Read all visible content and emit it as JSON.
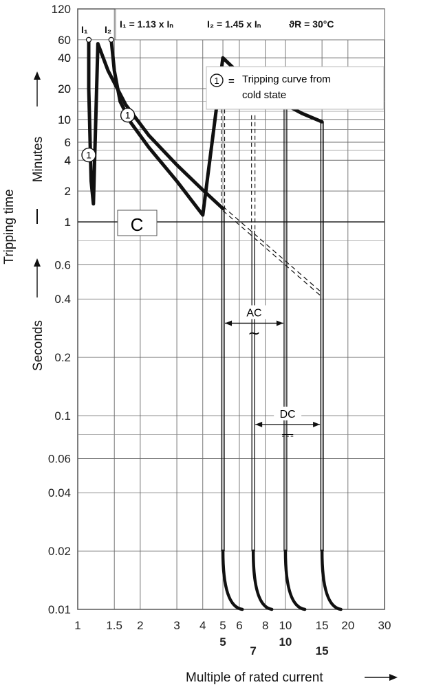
{
  "chart_data": {
    "type": "line",
    "curve_type_label": "C",
    "header": {
      "i1_formula": "I₁ = 1.13 x Iₙ",
      "i2_formula": "I₂ = 1.45 x Iₙ",
      "temp": "ϑR = 30°C",
      "i1_marker": "I₁",
      "i2_marker": "I₂"
    },
    "legend": {
      "symbol": "1",
      "eq": "=",
      "line1": "Tripping curve from",
      "line2": "cold state"
    },
    "xlabel": "Multiple of rated current",
    "ylabel_main": "Tripping time",
    "ylabel_minutes": "Minutes",
    "ylabel_seconds": "Seconds",
    "x_scale": "log",
    "xlim": [
      1,
      30
    ],
    "x_ticks": [
      {
        "v": 1,
        "label": "1"
      },
      {
        "v": 1.5,
        "label": "1.5"
      },
      {
        "v": 2,
        "label": "2"
      },
      {
        "v": 3,
        "label": "3"
      },
      {
        "v": 4,
        "label": "4"
      },
      {
        "v": 5,
        "label": "5"
      },
      {
        "v": 6,
        "label": "6"
      },
      {
        "v": 8,
        "label": "8"
      },
      {
        "v": 10,
        "label": "10"
      },
      {
        "v": 15,
        "label": "15"
      },
      {
        "v": 20,
        "label": "20"
      },
      {
        "v": 30,
        "label": "30"
      }
    ],
    "x_bold_ticks": [
      {
        "v": 5,
        "label": "5",
        "row": 0
      },
      {
        "v": 7,
        "label": "7",
        "row": 1
      },
      {
        "v": 10,
        "label": "10",
        "row": 0
      },
      {
        "v": 15,
        "label": "15",
        "row": 1
      }
    ],
    "y_scale": "log",
    "y_unit": "seconds",
    "ylim_seconds": [
      0.01,
      7200
    ],
    "y_ticks_seconds": [
      {
        "v": 0.01,
        "label": "0.01"
      },
      {
        "v": 0.02,
        "label": "0.02"
      },
      {
        "v": 0.04,
        "label": "0.04"
      },
      {
        "v": 0.06,
        "label": "0.06"
      },
      {
        "v": 0.1,
        "label": "0.1"
      },
      {
        "v": 0.2,
        "label": "0.2"
      },
      {
        "v": 0.4,
        "label": "0.4"
      },
      {
        "v": 0.6,
        "label": "0.6"
      },
      {
        "v": 1,
        "label": "1"
      },
      {
        "v": 2,
        "label": "2"
      },
      {
        "v": 4,
        "label": "4"
      },
      {
        "v": 6,
        "label": "6"
      },
      {
        "v": 10,
        "label": "10"
      },
      {
        "v": 20,
        "label": "20"
      },
      {
        "v": 40,
        "label": "40"
      }
    ],
    "y_ticks_minutes": [
      {
        "v": 1,
        "label": "1"
      },
      {
        "v": 2,
        "label": "2"
      },
      {
        "v": 4,
        "label": "4"
      },
      {
        "v": 6,
        "label": "6"
      },
      {
        "v": 10,
        "label": "10"
      },
      {
        "v": 20,
        "label": "20"
      },
      {
        "v": 40,
        "label": "40"
      },
      {
        "v": 60,
        "label": "60"
      },
      {
        "v": 120,
        "label": "120"
      }
    ],
    "y_minor_grid_seconds": [
      0.08,
      0.8,
      5,
      8,
      300,
      480,
      720,
      900
    ],
    "series": [
      {
        "role": "lower",
        "points": [
          [
            1.13,
            3600
          ],
          [
            1.13,
            1200
          ],
          [
            1.14,
            600
          ],
          [
            1.15,
            300
          ],
          [
            1.16,
            150
          ],
          [
            1.19,
            90
          ],
          [
            1.25,
            55
          ],
          [
            1.4,
            30
          ],
          [
            1.7,
            14
          ],
          [
            2.2,
            7
          ],
          [
            3.0,
            3.6
          ],
          [
            4.0,
            2.05
          ],
          [
            5.0,
            1.35
          ]
        ]
      },
      {
        "role": "upper",
        "points": [
          [
            1.45,
            3600
          ],
          [
            1.5,
            1800
          ],
          [
            1.6,
            900
          ],
          [
            1.8,
            560
          ],
          [
            2.2,
            320
          ],
          [
            3.0,
            150
          ],
          [
            4.0,
            70
          ],
          [
            5.0,
            40
          ],
          [
            6.0,
            28
          ],
          [
            7.0,
            21
          ],
          [
            8.5,
            16
          ],
          [
            10.0,
            14
          ],
          [
            12.0,
            11.5
          ],
          [
            15.0,
            9.5
          ]
        ]
      }
    ],
    "curve_markers": [
      {
        "label": "1",
        "x": 1.13,
        "y": 270
      },
      {
        "label": "1",
        "x": 1.74,
        "y": 660
      }
    ],
    "lower_extension": [
      [
        5.0,
        1.35
      ],
      [
        15.0,
        0.42
      ]
    ],
    "instantaneous_lines": [
      {
        "x": 5,
        "style": "solid"
      },
      {
        "x": 7,
        "style": "solid"
      },
      {
        "x": 10,
        "style": "solid"
      },
      {
        "x": 15,
        "style": "solid"
      }
    ],
    "dashed_verticals": [
      {
        "x": 5,
        "y_top": 20,
        "y_bottom": 1.35
      },
      {
        "x": 7,
        "y_top": 11,
        "y_bottom": 0.9
      }
    ],
    "instant_tails": [
      {
        "x_start": 5,
        "x_end": 6.2
      },
      {
        "x_start": 7,
        "x_end": 8.6
      },
      {
        "x_start": 10,
        "x_end": 12.4
      },
      {
        "x_start": 15,
        "x_end": 18.5
      }
    ],
    "ac_range": {
      "label": "AC",
      "symbol": "~",
      "x_from": 5,
      "x_to": 10,
      "y": 0.3
    },
    "dc_range": {
      "label": "DC",
      "symbol": "⎓",
      "x_from": 7,
      "x_to": 15,
      "y": 0.09
    }
  }
}
